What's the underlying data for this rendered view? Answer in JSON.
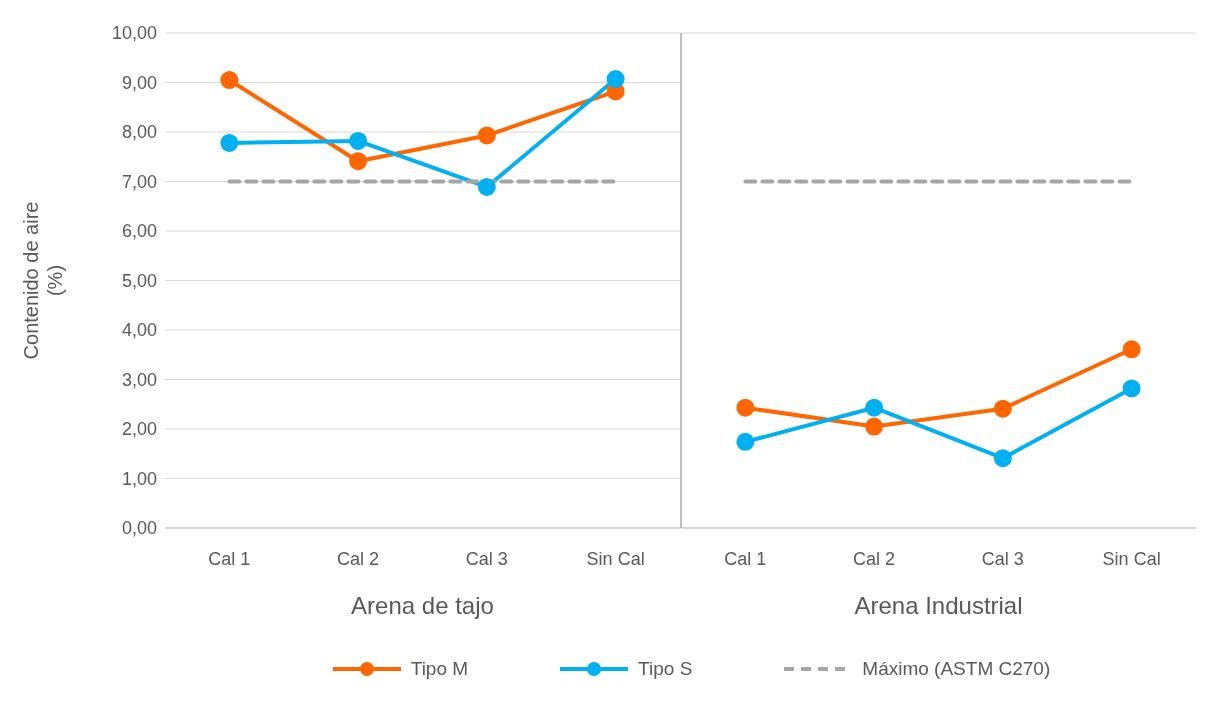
{
  "chart_data": [
    {
      "type": "line",
      "xlabel": "Arena de tajo",
      "ylabel": "Contenido de aire (%)",
      "categories": [
        "Cal 1",
        "Cal 2",
        "Cal 3",
        "Sin Cal"
      ],
      "ylim": [
        0,
        10
      ],
      "yticks": [
        {
          "value": 0,
          "label": "0,00"
        },
        {
          "value": 1,
          "label": "1,00"
        },
        {
          "value": 2,
          "label": "2,00"
        },
        {
          "value": 3,
          "label": "3,00"
        },
        {
          "value": 4,
          "label": "4,00"
        },
        {
          "value": 5,
          "label": "5,00"
        },
        {
          "value": 6,
          "label": "6,00"
        },
        {
          "value": 7,
          "label": "7,00"
        },
        {
          "value": 8,
          "label": "8,00"
        },
        {
          "value": 9,
          "label": "9,00"
        },
        {
          "value": 10,
          "label": "10,00"
        }
      ],
      "grid": "y",
      "legend": "bottom",
      "series": [
        {
          "name": "Tipo M",
          "color": "#ff6600",
          "marker": "circle",
          "line_style": "solid",
          "values": [
            9.05,
            7.41,
            7.93,
            8.82
          ]
        },
        {
          "name": "Tipo S",
          "color": "#00b0f0",
          "marker": "circle",
          "line_style": "solid",
          "values": [
            7.78,
            7.82,
            6.89,
            9.07
          ]
        },
        {
          "name": "Máximo (ASTM C270)",
          "color": "#a6a6a6",
          "marker": "none",
          "line_style": "dashed",
          "values": [
            7,
            7,
            7,
            7
          ]
        }
      ]
    },
    {
      "type": "line",
      "xlabel": "Arena Industrial",
      "categories": [
        "Cal 1",
        "Cal 2",
        "Cal 3",
        "Sin Cal"
      ],
      "ylim": [
        0,
        10
      ],
      "tick_labels": "x",
      "grid": "y",
      "series": [
        {
          "color": "#ff6600",
          "marker": "circle",
          "line_style": "solid",
          "values": [
            2.43,
            2.05,
            2.41,
            3.61
          ]
        },
        {
          "color": "#00b0f0",
          "marker": "circle",
          "line_style": "solid",
          "values": [
            1.74,
            2.43,
            1.41,
            2.82
          ]
        },
        {
          "color": "#a6a6a6",
          "marker": "none",
          "line_style": "dashed",
          "values": [
            7,
            7,
            7,
            7
          ]
        }
      ]
    }
  ]
}
